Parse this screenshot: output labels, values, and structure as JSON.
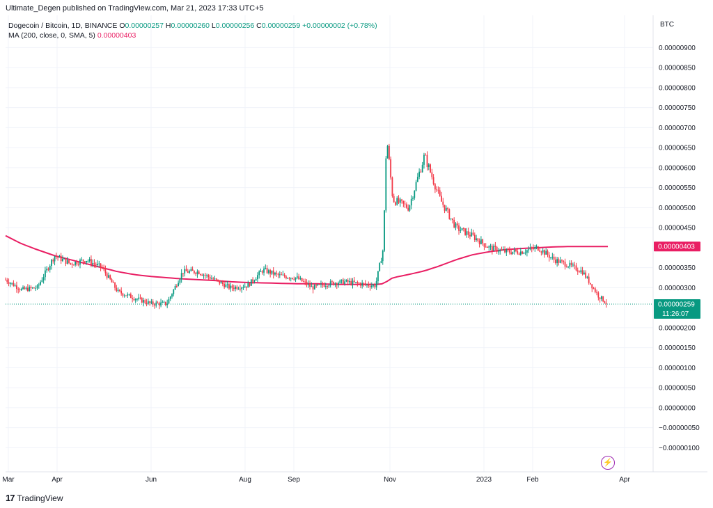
{
  "header": {
    "published": "Ultimate_Degen published on TradingView.com, Mar 21, 2023 17:33 UTC+5"
  },
  "legend": {
    "symbol": "Dogecoin / Bitcoin, 1D, BINANCE",
    "o_label": "O",
    "o": "0.00000257",
    "h_label": "H",
    "h": "0.00000260",
    "l_label": "L",
    "l": "0.00000256",
    "c_label": "C",
    "c": "0.00000259",
    "change": "+0.00000002 (+0.78%)",
    "ma_label": "MA (200, close, 0, SMA, 5)",
    "ma_value": "0.00000403"
  },
  "price_scale": {
    "currency": "BTC",
    "ticks": [
      "0.00000900",
      "0.00000850",
      "0.00000800",
      "0.00000750",
      "0.00000700",
      "0.00000650",
      "0.00000600",
      "0.00000550",
      "0.00000500",
      "0.00000450",
      "0.00000350",
      "0.00000300",
      "0.00000200",
      "0.00000150",
      "0.00000100",
      "0.00000050",
      "0.00000000",
      "−0.00000050",
      "−0.00000100"
    ],
    "tick_values": [
      9.0,
      8.5,
      8.0,
      7.5,
      7.0,
      6.5,
      6.0,
      5.5,
      5.0,
      4.5,
      3.5,
      3.0,
      2.0,
      1.5,
      1.0,
      0.5,
      0.0,
      -0.5,
      -1.0
    ]
  },
  "time_scale": [
    "Mar",
    "Apr",
    "Jun",
    "Aug",
    "Sep",
    "Nov",
    "2023",
    "Feb",
    "Apr"
  ],
  "badges": {
    "ma": "0.00000403",
    "price": "0.00000259",
    "countdown": "11:26:07"
  },
  "colors": {
    "up": "#089981",
    "down": "#f23645",
    "ma": "#e91e63",
    "grid": "#f0f3fa",
    "price_line": "#089981"
  },
  "footer": {
    "brand": "TradingView",
    "logo": "tradingview-logo-icon"
  },
  "chart_data": {
    "type": "candlestick",
    "title": "Dogecoin / Bitcoin, 1D, BINANCE",
    "unit": "BTC (×1e-6 in series below)",
    "x": [
      "2022-03-05",
      "2022-03-15",
      "2022-03-25",
      "2022-04-05",
      "2022-04-15",
      "2022-04-25",
      "2022-05-05",
      "2022-05-15",
      "2022-05-25",
      "2022-06-05",
      "2022-06-15",
      "2022-06-25",
      "2022-07-05",
      "2022-07-15",
      "2022-07-25",
      "2022-08-05",
      "2022-08-15",
      "2022-08-25",
      "2022-09-05",
      "2022-09-15",
      "2022-09-25",
      "2022-10-05",
      "2022-10-15",
      "2022-10-25",
      "2022-10-30",
      "2022-11-01",
      "2022-11-05",
      "2022-11-15",
      "2022-11-25",
      "2022-12-05",
      "2022-12-15",
      "2022-12-25",
      "2023-01-05",
      "2023-01-15",
      "2023-01-25",
      "2023-02-05",
      "2023-02-15",
      "2023-02-25",
      "2023-03-05",
      "2023-03-15",
      "2023-03-21"
    ],
    "series": [
      {
        "values": [
          3.2,
          2.95,
          3.0,
          3.8,
          3.6,
          3.7,
          3.5,
          2.9,
          2.75,
          2.6,
          2.6,
          3.4,
          3.4,
          3.2,
          3.0,
          3.05,
          3.45,
          3.3,
          3.25,
          3.0,
          3.1,
          3.15,
          3.1,
          3.05,
          4.0,
          6.8,
          5.2,
          5.0,
          6.3,
          5.2,
          4.5,
          4.3,
          4.0,
          3.9,
          3.9,
          4.0,
          3.7,
          3.55,
          3.4,
          2.8,
          2.59
        ]
      },
      {
        "name": "MA (200, close, 0, SMA, 5)",
        "values": [
          4.3,
          4.1,
          3.95,
          3.8,
          3.7,
          3.6,
          3.5,
          3.4,
          3.33,
          3.28,
          3.25,
          3.22,
          3.2,
          3.18,
          3.15,
          3.13,
          3.12,
          3.11,
          3.1,
          3.1,
          3.09,
          3.08,
          3.08,
          3.08,
          3.1,
          3.15,
          3.25,
          3.33,
          3.42,
          3.55,
          3.7,
          3.82,
          3.9,
          3.95,
          3.98,
          4.0,
          4.02,
          4.03,
          4.03,
          4.03,
          4.03
        ]
      }
    ],
    "last_price": 2.59,
    "ma_last": 4.03,
    "ylim": [
      -1.3,
      9.3
    ],
    "grid": true
  }
}
